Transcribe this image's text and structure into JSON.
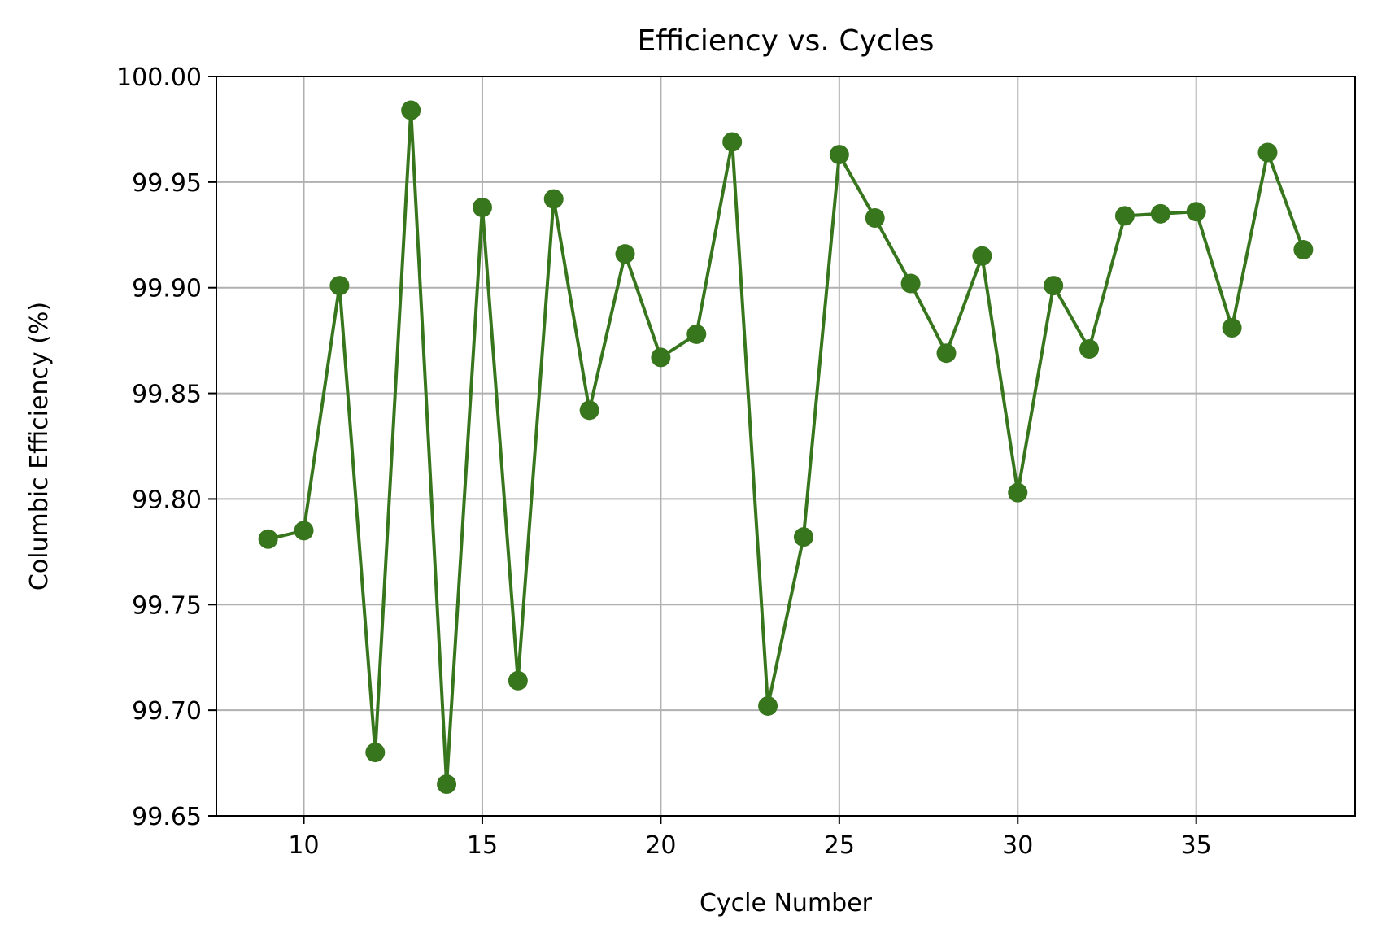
{
  "chart_data": {
    "type": "line",
    "title": "Efficiency vs. Cycles",
    "xlabel": "Cycle Number",
    "ylabel": "Columbic Efficiency (%)",
    "xlim": [
      7.55,
      39.45
    ],
    "ylim": [
      99.65,
      100.0
    ],
    "xticks": [
      10,
      15,
      20,
      25,
      30,
      35
    ],
    "yticks": [
      99.65,
      99.7,
      99.75,
      99.8,
      99.85,
      99.9,
      99.95,
      100.0
    ],
    "ytick_labels": [
      "99.65",
      "99.70",
      "99.75",
      "99.80",
      "99.85",
      "99.90",
      "99.95",
      "100.00"
    ],
    "grid": true,
    "legend": "none",
    "x": [
      9,
      10,
      11,
      12,
      13,
      14,
      15,
      16,
      17,
      18,
      19,
      20,
      21,
      22,
      23,
      24,
      25,
      26,
      27,
      28,
      29,
      30,
      31,
      32,
      33,
      34,
      35,
      36,
      37,
      38
    ],
    "series": [
      {
        "color": "#38761d",
        "marker": "circle",
        "values": [
          99.781,
          99.785,
          99.901,
          99.68,
          99.984,
          99.665,
          99.938,
          99.714,
          99.942,
          99.842,
          99.916,
          99.867,
          99.878,
          99.969,
          99.702,
          99.782,
          99.963,
          99.933,
          99.902,
          99.869,
          99.915,
          99.803,
          99.901,
          99.871,
          99.934,
          99.935,
          99.936,
          99.881,
          99.964,
          99.918
        ]
      }
    ]
  }
}
